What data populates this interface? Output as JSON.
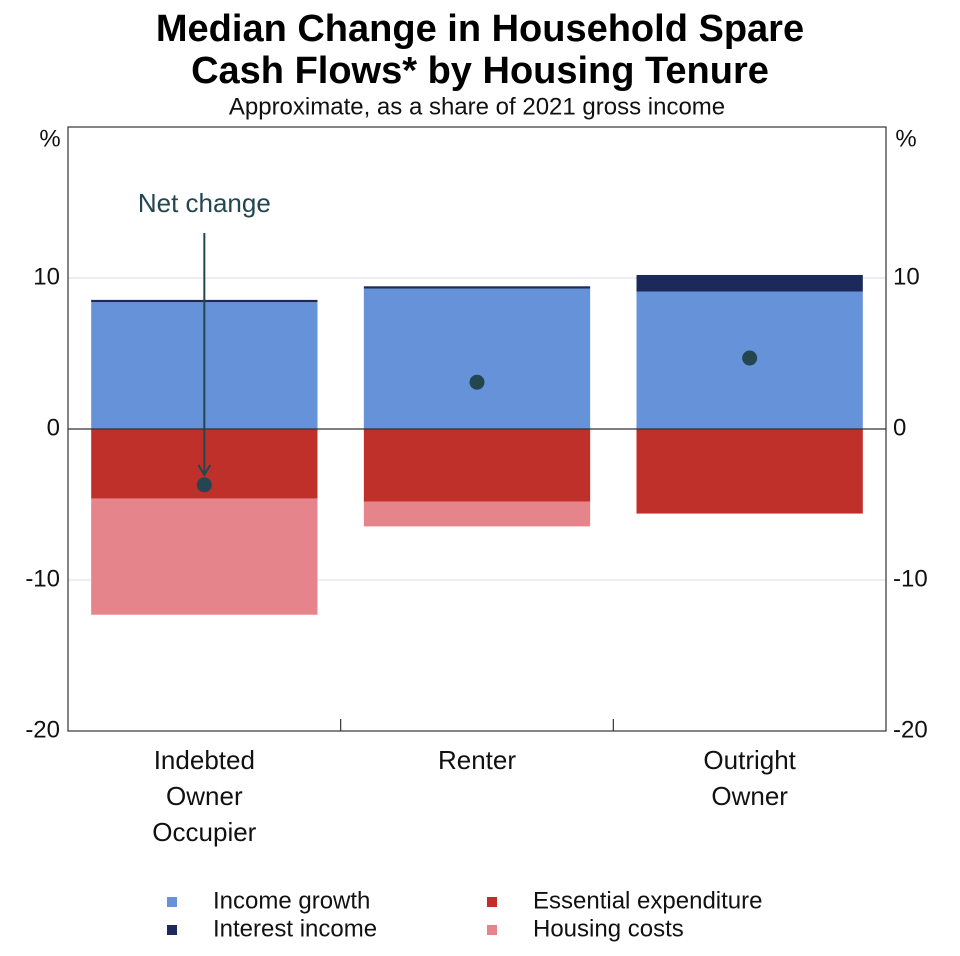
{
  "chart_data": {
    "type": "stacked-bar",
    "title": "Median Change in Household Spare\nCash Flows* by Housing Tenure",
    "subtitle": "Approximate, as a share of 2021 gross income",
    "y_unit": "%",
    "categories": [
      "Indebted Owner Occupier",
      "Renter",
      "Outright Owner"
    ],
    "series": [
      {
        "name": "Income growth",
        "color": "#6592d9",
        "values": [
          8.4,
          9.3,
          9.1
        ]
      },
      {
        "name": "Interest income",
        "color": "#1b2a5a",
        "values": [
          0.15,
          0.15,
          1.1
        ]
      },
      {
        "name": "Essential expenditure",
        "color": "#c0302a",
        "values": [
          -4.6,
          -4.8,
          -5.6
        ]
      },
      {
        "name": "Housing costs",
        "color": "#e5848a",
        "values": [
          -7.7,
          -1.65,
          0
        ]
      }
    ],
    "net_change": {
      "label": "Net change",
      "color": "#234651",
      "values": [
        -3.7,
        3.1,
        4.7
      ]
    },
    "ylim": [
      -20,
      20
    ],
    "yticks": [
      -20,
      -10,
      0,
      10
    ],
    "grid": true
  }
}
